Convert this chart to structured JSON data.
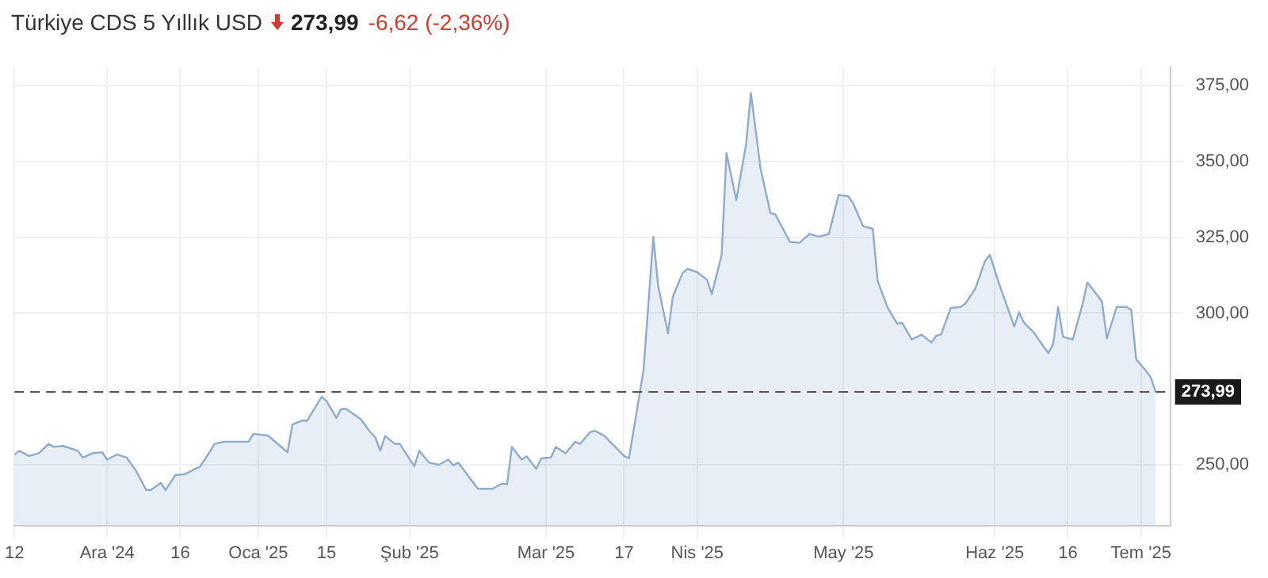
{
  "chart_data": {
    "type": "area",
    "title": "Türkiye CDS 5 Yıllık USD",
    "annotations": [
      "273,99",
      "-6,62 (-2,36%)"
    ],
    "x": [
      "2024-11-12",
      "2024-11-13",
      "2024-11-15",
      "2024-11-17",
      "2024-11-19",
      "2024-11-20",
      "2024-11-22",
      "2024-11-25",
      "2024-11-26",
      "2024-11-28",
      "2024-11-30",
      "2024-12-01",
      "2024-12-03",
      "2024-12-05",
      "2024-12-07",
      "2024-12-09",
      "2024-12-10",
      "2024-12-12",
      "2024-12-13",
      "2024-12-15",
      "2024-12-17",
      "2024-12-19",
      "2024-12-20",
      "2024-12-22",
      "2024-12-23",
      "2024-12-25",
      "2024-12-30",
      "2024-12-31",
      "2025-01-03",
      "2025-01-07",
      "2025-01-08",
      "2025-01-10",
      "2025-01-11",
      "2025-01-14",
      "2025-01-15",
      "2025-01-17",
      "2025-01-18",
      "2025-01-19",
      "2025-01-21",
      "2025-01-22",
      "2025-01-24",
      "2025-01-25",
      "2025-01-26",
      "2025-01-27",
      "2025-01-29",
      "2025-01-30",
      "2025-02-02",
      "2025-02-03",
      "2025-02-05",
      "2025-02-07",
      "2025-02-09",
      "2025-02-10",
      "2025-02-11",
      "2025-02-15",
      "2025-02-18",
      "2025-02-20",
      "2025-02-21",
      "2025-02-22",
      "2025-02-24",
      "2025-02-25",
      "2025-02-27",
      "2025-02-28",
      "2025-03-02",
      "2025-03-03",
      "2025-03-05",
      "2025-03-07",
      "2025-03-08",
      "2025-03-10",
      "2025-03-11",
      "2025-03-13",
      "2025-03-17",
      "2025-03-18",
      "2025-03-21",
      "2025-03-23",
      "2025-03-24",
      "2025-03-26",
      "2025-03-27",
      "2025-03-29",
      "2025-03-30",
      "2025-04-01",
      "2025-04-03",
      "2025-04-04",
      "2025-04-06",
      "2025-04-07",
      "2025-04-09",
      "2025-04-11",
      "2025-04-12",
      "2025-04-14",
      "2025-04-16",
      "2025-04-17",
      "2025-04-20",
      "2025-04-22",
      "2025-04-24",
      "2025-04-26",
      "2025-04-28",
      "2025-04-30",
      "2025-05-02",
      "2025-05-03",
      "2025-05-05",
      "2025-05-07",
      "2025-05-08",
      "2025-05-10",
      "2025-05-12",
      "2025-05-13",
      "2025-05-15",
      "2025-05-17",
      "2025-05-19",
      "2025-05-20",
      "2025-05-21",
      "2025-05-23",
      "2025-05-25",
      "2025-05-26",
      "2025-05-28",
      "2025-05-30",
      "2025-05-31",
      "2025-06-02",
      "2025-06-05",
      "2025-06-06",
      "2025-06-07",
      "2025-06-09",
      "2025-06-10",
      "2025-06-12",
      "2025-06-13",
      "2025-06-14",
      "2025-06-15",
      "2025-06-17",
      "2025-06-19",
      "2025-06-20",
      "2025-06-22",
      "2025-06-23",
      "2025-06-24",
      "2025-06-26",
      "2025-06-28",
      "2025-06-29",
      "2025-06-30",
      "2025-07-02",
      "2025-07-03",
      "2025-07-04"
    ],
    "series": [
      {
        "color": "#8eaccb",
        "values": [
          253.4,
          254.6,
          252.9,
          253.8,
          256.9,
          255.9,
          256.2,
          254.6,
          252.4,
          253.8,
          254.1,
          251.7,
          253.4,
          252.4,
          247.8,
          241.7,
          241.7,
          244,
          241.7,
          246.6,
          246.9,
          248.6,
          249.3,
          254.1,
          256.9,
          257.6,
          257.6,
          260.2,
          259.6,
          254.1,
          263.3,
          264.6,
          264.5,
          272.4,
          271,
          265.5,
          268.4,
          268.4,
          266.2,
          265,
          260.7,
          259,
          254.6,
          259.5,
          256.9,
          256.9,
          249.5,
          254.6,
          250.7,
          250,
          251.7,
          249.8,
          250.7,
          242.1,
          242.1,
          243.8,
          243.5,
          255.9,
          251.7,
          252.8,
          248.6,
          252.1,
          252.4,
          255.9,
          253.8,
          257.6,
          256.9,
          260.7,
          261.2,
          259.5,
          252.9,
          252.1,
          281.3,
          325.2,
          308.9,
          293.4,
          305.4,
          313.2,
          314.6,
          313.5,
          311,
          306.3,
          319.2,
          352.8,
          337.3,
          355.4,
          372.6,
          347.6,
          333,
          332.6,
          323.5,
          323.2,
          326.1,
          325.2,
          326.1,
          339,
          338.5,
          336.1,
          328.7,
          327.8,
          310.6,
          302,
          296.5,
          296.8,
          291.3,
          292.9,
          290.3,
          292.5,
          293,
          301.7,
          302,
          303.2,
          308,
          317.1,
          319.2,
          309.2,
          295.6,
          300.3,
          296.8,
          293.7,
          291.3,
          286.8,
          289.9,
          302,
          292.2,
          291.3,
          302.9,
          310.1,
          306,
          303.7,
          291.7,
          302,
          302,
          301.1,
          284.8,
          281,
          278.8,
          273.99
        ]
      }
    ],
    "xlim": [
      "2024-11-12",
      "2025-07-07"
    ],
    "xticks": [
      {
        "value": "2024-11-12",
        "label": "12"
      },
      {
        "value": "2024-12-01",
        "label": "Ara '24"
      },
      {
        "value": "2024-12-16",
        "label": "16"
      },
      {
        "value": "2025-01-01",
        "label": "Oca '25"
      },
      {
        "value": "2025-01-15",
        "label": "15"
      },
      {
        "value": "2025-02-01",
        "label": "Şub '25"
      },
      {
        "value": "2025-03-01",
        "label": "Mar '25"
      },
      {
        "value": "2025-03-17",
        "label": "17"
      },
      {
        "value": "2025-04-01",
        "label": "Nis '25"
      },
      {
        "value": "2025-05-01",
        "label": "May '25"
      },
      {
        "value": "2025-06-01",
        "label": "Haz '25"
      },
      {
        "value": "2025-06-16",
        "label": "16"
      },
      {
        "value": "2025-07-01",
        "label": "Tem '25"
      }
    ],
    "ylim": [
      230,
      381
    ],
    "yticks": [
      {
        "value": 250,
        "label": "250,00"
      },
      {
        "value": 300,
        "label": "300,00"
      },
      {
        "value": 325,
        "label": "325,00"
      },
      {
        "value": 350,
        "label": "350,00"
      },
      {
        "value": 375,
        "label": "375,00"
      }
    ],
    "ref_lines": [
      {
        "axis": "y",
        "value": 273.99,
        "label": "273,99",
        "color": "#555555",
        "line_style": "dashed"
      }
    ],
    "grid": true,
    "legend": false,
    "marker": "none"
  }
}
